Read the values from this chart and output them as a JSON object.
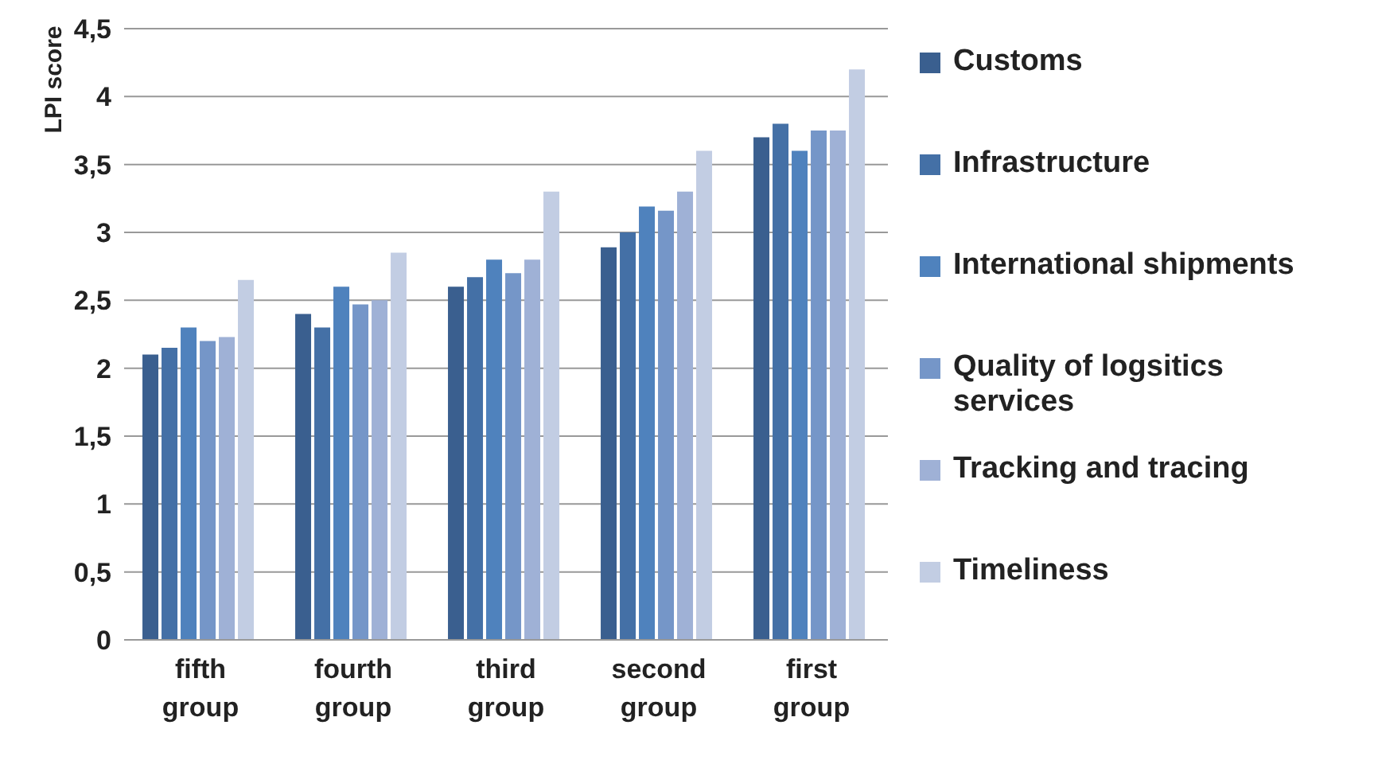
{
  "chart_data": {
    "type": "bar",
    "ylabel": "LPI score",
    "categories": [
      "fifth group",
      "fourth group",
      "third group",
      "second group",
      "first group"
    ],
    "series": [
      {
        "name": "Customs",
        "color": "#3a5f8f",
        "values": [
          2.1,
          2.4,
          2.6,
          2.89,
          3.7
        ]
      },
      {
        "name": "Infrastructure",
        "color": "#4470a6",
        "values": [
          2.15,
          2.3,
          2.67,
          3.0,
          3.8
        ]
      },
      {
        "name": "International shipments",
        "color": "#4f82bd",
        "values": [
          2.3,
          2.6,
          2.8,
          3.19,
          3.6
        ]
      },
      {
        "name": "Quality of logsitics services",
        "color": "#7596c8",
        "values": [
          2.2,
          2.47,
          2.7,
          3.16,
          3.75
        ]
      },
      {
        "name": "Tracking and tracing",
        "color": "#9fb1d6",
        "values": [
          2.23,
          2.5,
          2.8,
          3.3,
          3.75
        ]
      },
      {
        "name": "Timeliness",
        "color": "#c2cde3",
        "values": [
          2.65,
          2.85,
          3.3,
          3.6,
          4.2
        ]
      }
    ],
    "ylim": [
      0,
      4.5
    ],
    "yticks": [
      0,
      {
        "value": 0.5,
        "label": "0,5"
      },
      1,
      {
        "value": 1.5,
        "label": "1,5"
      },
      2,
      {
        "value": 2.5,
        "label": "2,5"
      },
      3,
      {
        "value": 3.5,
        "label": "3,5"
      },
      4,
      {
        "value": 4.5,
        "label": "4,5"
      }
    ],
    "grid": "y",
    "legend": "right"
  }
}
